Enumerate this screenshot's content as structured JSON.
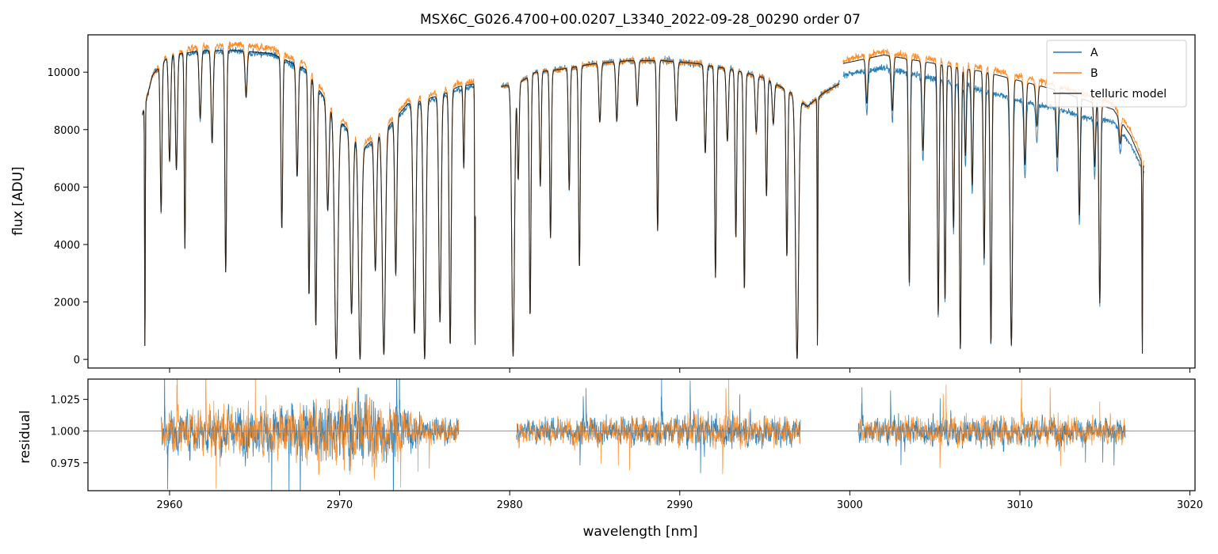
{
  "figure": {
    "title": "MSX6C_G026.4700+00.0207_L3340_2022-09-28_00290  order 07"
  },
  "colors": {
    "A": "#1f77b4",
    "B": "#ff7f0e",
    "model": "#3a3a3a",
    "refline": "#808080"
  },
  "chart_data": [
    {
      "type": "line",
      "panel": "top",
      "title": "MSX6C_G026.4700+00.0207_L3340_2022-09-28_00290  order 07",
      "xlabel": "",
      "ylabel": "flux [ADU]",
      "xlim": [
        2955.2,
        3020.3
      ],
      "ylim": [
        -300,
        11300
      ],
      "yticks": [
        0,
        2000,
        4000,
        6000,
        8000,
        10000
      ],
      "ytick_labels": [
        "0",
        "2000",
        "4000",
        "6000",
        "8000",
        "10000"
      ],
      "legend": {
        "position": "top-right",
        "entries": [
          "A",
          "B",
          "telluric model"
        ]
      },
      "segments": [
        {
          "x_range": [
            2958.4,
            2978.0
          ],
          "continuum": [
            [
              2958.4,
              8500
            ],
            [
              2959.0,
              9900
            ],
            [
              2960.0,
              10600
            ],
            [
              2962.0,
              10750
            ],
            [
              2964.0,
              10750
            ],
            [
              2966.0,
              10650
            ],
            [
              2968.0,
              10100
            ],
            [
              2970.0,
              8300
            ],
            [
              2971.5,
              7400
            ],
            [
              2973.0,
              8200
            ],
            [
              2974.0,
              8900
            ],
            [
              2976.0,
              9200
            ],
            [
              2977.0,
              9500
            ],
            [
              2978.0,
              9600
            ]
          ],
          "A_offset": [
            [
              2958.4,
              0
            ],
            [
              2978.0,
              -100
            ]
          ],
          "B_offset": [
            [
              2958.4,
              0
            ],
            [
              2964.0,
              200
            ],
            [
              2978.0,
              100
            ]
          ]
        },
        {
          "x_range": [
            2979.5,
            2999.4
          ],
          "continuum": [
            [
              2979.5,
              9500
            ],
            [
              2980.5,
              9600
            ],
            [
              2981.5,
              10000
            ],
            [
              2983.0,
              10100
            ],
            [
              2985.0,
              10300
            ],
            [
              2987.0,
              10400
            ],
            [
              2989.0,
              10400
            ],
            [
              2991.0,
              10300
            ],
            [
              2993.0,
              10100
            ],
            [
              2995.0,
              9800
            ],
            [
              2996.5,
              9300
            ],
            [
              2997.5,
              8800
            ],
            [
              2998.5,
              9300
            ],
            [
              2999.4,
              9600
            ]
          ],
          "A_offset": [
            [
              2979.5,
              0
            ],
            [
              2999.4,
              0
            ]
          ],
          "B_offset": [
            [
              2979.5,
              0
            ],
            [
              2999.4,
              0
            ]
          ]
        },
        {
          "x_range": [
            2999.6,
            3017.3
          ],
          "continuum": [
            [
              2999.6,
              10300
            ],
            [
              3002.0,
              10600
            ],
            [
              3004.0,
              10400
            ],
            [
              3006.0,
              10200
            ],
            [
              3008.0,
              10000
            ],
            [
              3010.0,
              9700
            ],
            [
              3012.0,
              9400
            ],
            [
              3014.0,
              9000
            ],
            [
              3015.5,
              8700
            ],
            [
              3016.5,
              7800
            ],
            [
              3017.3,
              6700
            ]
          ],
          "A_offset": [
            [
              2999.6,
              -400
            ],
            [
              3004.0,
              -500
            ],
            [
              3010.0,
              -700
            ],
            [
              3014.0,
              -600
            ],
            [
              3017.3,
              -200
            ]
          ],
          "B_offset": [
            [
              2999.6,
              100
            ],
            [
              3017.3,
              200
            ]
          ]
        }
      ],
      "absorption_lines": [
        [
          2958.55,
          0.99,
          0.02
        ],
        [
          2959.5,
          0.5,
          0.05
        ],
        [
          2960.0,
          0.35,
          0.06
        ],
        [
          2960.4,
          0.38,
          0.06
        ],
        [
          2960.9,
          0.64,
          0.04
        ],
        [
          2961.8,
          0.22,
          0.06
        ],
        [
          2962.5,
          0.3,
          0.06
        ],
        [
          2963.3,
          0.72,
          0.05
        ],
        [
          2964.5,
          0.15,
          0.06
        ],
        [
          2966.6,
          0.57,
          0.05
        ],
        [
          2967.5,
          0.38,
          0.06
        ],
        [
          2968.2,
          0.78,
          0.05
        ],
        [
          2968.6,
          0.88,
          0.06
        ],
        [
          2969.3,
          0.42,
          0.07
        ],
        [
          2969.8,
          1.0,
          0.1
        ],
        [
          2970.7,
          0.8,
          0.08
        ],
        [
          2971.2,
          1.0,
          0.09
        ],
        [
          2972.1,
          0.6,
          0.07
        ],
        [
          2972.6,
          0.98,
          0.09
        ],
        [
          2973.3,
          0.65,
          0.06
        ],
        [
          2974.4,
          0.9,
          0.08
        ],
        [
          2975.0,
          1.0,
          0.08
        ],
        [
          2975.9,
          0.86,
          0.07
        ],
        [
          2976.5,
          0.95,
          0.06
        ],
        [
          2977.3,
          0.3,
          0.04
        ],
        [
          2977.96,
          0.99,
          0.02
        ],
        [
          2980.2,
          0.99,
          0.08
        ],
        [
          2980.5,
          0.35,
          0.05
        ],
        [
          2981.2,
          0.85,
          0.05
        ],
        [
          2981.8,
          0.4,
          0.05
        ],
        [
          2982.4,
          0.58,
          0.05
        ],
        [
          2983.5,
          0.42,
          0.05
        ],
        [
          2984.1,
          0.69,
          0.05
        ],
        [
          2985.3,
          0.2,
          0.06
        ],
        [
          2986.3,
          0.2,
          0.06
        ],
        [
          2987.5,
          0.15,
          0.06
        ],
        [
          2988.7,
          0.57,
          0.05
        ],
        [
          2989.8,
          0.2,
          0.06
        ],
        [
          2991.5,
          0.3,
          0.06
        ],
        [
          2992.1,
          0.72,
          0.05
        ],
        [
          2992.8,
          0.25,
          0.06
        ],
        [
          2993.3,
          0.58,
          0.05
        ],
        [
          2993.8,
          0.76,
          0.05
        ],
        [
          2994.5,
          0.2,
          0.06
        ],
        [
          2995.1,
          0.42,
          0.05
        ],
        [
          2995.5,
          0.15,
          0.06
        ],
        [
          2996.3,
          0.62,
          0.05
        ],
        [
          2996.9,
          1.0,
          0.09
        ],
        [
          2998.1,
          0.99,
          0.02
        ],
        [
          2999.5,
          0.99,
          0.02
        ],
        [
          3001.0,
          0.15,
          0.06
        ],
        [
          3002.5,
          0.18,
          0.06
        ],
        [
          3003.5,
          0.75,
          0.05
        ],
        [
          3004.3,
          0.3,
          0.06
        ],
        [
          3005.2,
          0.85,
          0.05
        ],
        [
          3005.6,
          0.8,
          0.05
        ],
        [
          3006.1,
          0.55,
          0.05
        ],
        [
          3006.5,
          0.97,
          0.05
        ],
        [
          3006.8,
          0.3,
          0.05
        ],
        [
          3007.2,
          0.4,
          0.05
        ],
        [
          3007.9,
          0.65,
          0.05
        ],
        [
          3008.3,
          0.95,
          0.05
        ],
        [
          3009.5,
          0.95,
          0.07
        ],
        [
          3010.3,
          0.3,
          0.06
        ],
        [
          3011.0,
          0.15,
          0.06
        ],
        [
          3012.2,
          0.25,
          0.06
        ],
        [
          3013.5,
          0.45,
          0.05
        ],
        [
          3014.4,
          0.25,
          0.05
        ],
        [
          3014.7,
          0.78,
          0.05
        ],
        [
          3015.9,
          0.1,
          0.06
        ],
        [
          3017.2,
          0.99,
          0.02
        ]
      ],
      "series": [
        {
          "name": "A",
          "noise": 0.012
        },
        {
          "name": "B",
          "noise": 0.012
        },
        {
          "name": "telluric model",
          "noise": 0
        }
      ]
    },
    {
      "type": "line",
      "panel": "bottom",
      "xlabel": "wavelength [nm]",
      "ylabel": "residual",
      "xlim": [
        2955.2,
        3020.3
      ],
      "ylim": [
        0.953,
        1.041
      ],
      "reference_line": 1.0,
      "xticks": [
        2960,
        2970,
        2980,
        2990,
        3000,
        3010,
        3020
      ],
      "xtick_labels": [
        "2960",
        "2970",
        "2980",
        "2990",
        "3000",
        "3010",
        "3020"
      ],
      "yticks": [
        0.975,
        1.0,
        1.025
      ],
      "ytick_labels": [
        "0.975",
        "1.000",
        "1.025"
      ],
      "segments": [
        {
          "x_range": [
            2959.5,
            2977.0
          ],
          "scatter": [
            [
              2959.5,
              0.013
            ],
            [
              2967.0,
              0.017
            ],
            [
              2971.0,
              0.025
            ],
            [
              2973.0,
              0.018
            ],
            [
              2975.0,
              0.009
            ],
            [
              2977.0,
              0.008
            ]
          ]
        },
        {
          "x_range": [
            2980.4,
            2997.1
          ],
          "scatter": [
            [
              2980.4,
              0.008
            ],
            [
              2986.0,
              0.009
            ],
            [
              2992.0,
              0.011
            ],
            [
              2997.1,
              0.009
            ]
          ]
        },
        {
          "x_range": [
            3000.5,
            3016.2
          ],
          "scatter": [
            [
              3000.5,
              0.008
            ],
            [
              3008.0,
              0.01
            ],
            [
              3016.2,
              0.008
            ]
          ]
        }
      ],
      "series": [
        {
          "name": "A"
        },
        {
          "name": "B"
        }
      ]
    }
  ]
}
